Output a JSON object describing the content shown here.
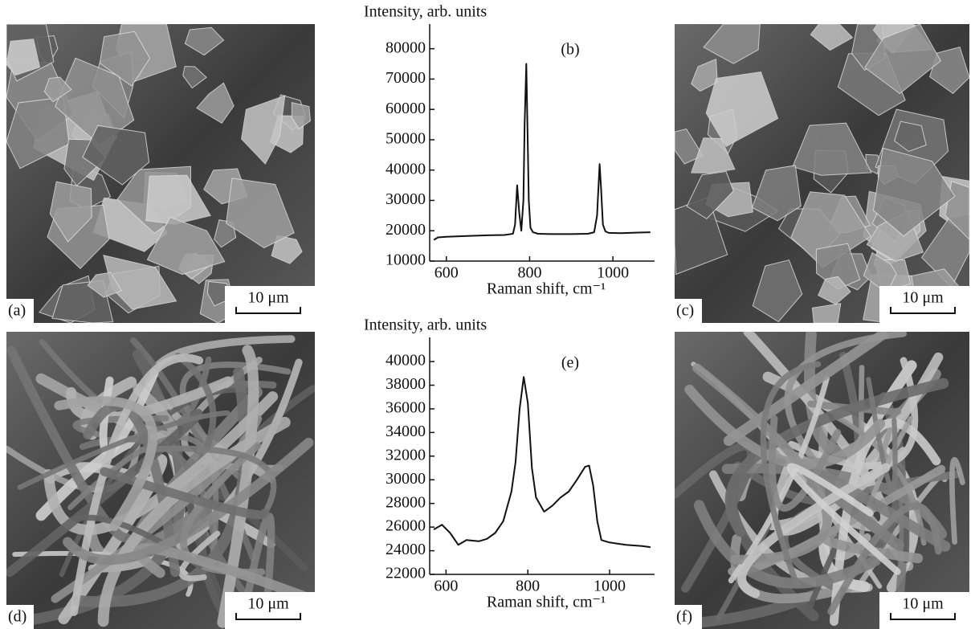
{
  "chart_data": [
    {
      "type": "line",
      "panel": "(b)",
      "ylabel": "Intensity, arb. units",
      "xlabel": "Raman shift, cm⁻¹",
      "color": "#111111",
      "x": [
        570,
        580,
        600,
        650,
        700,
        740,
        760,
        765,
        770,
        775,
        780,
        785,
        788,
        792,
        795,
        798,
        802,
        808,
        820,
        850,
        900,
        940,
        955,
        962,
        968,
        972,
        976,
        982,
        990,
        1020,
        1060,
        1090
      ],
      "values": [
        17000,
        17800,
        18000,
        18300,
        18500,
        18600,
        19000,
        22000,
        35000,
        26000,
        20000,
        30000,
        55000,
        75000,
        52000,
        30000,
        21000,
        19500,
        19000,
        18900,
        18900,
        19000,
        19500,
        25000,
        42000,
        33000,
        22000,
        19800,
        19300,
        19200,
        19400,
        19500
      ],
      "xlim": [
        560,
        1100
      ],
      "xticks": [
        600,
        800,
        1000
      ],
      "ylim": [
        10000,
        86000
      ],
      "yticks": [
        10000,
        20000,
        30000,
        40000,
        50000,
        60000,
        70000,
        80000
      ]
    },
    {
      "type": "line",
      "panel": "(e)",
      "ylabel": "Intensity, arb. units",
      "xlabel": "Raman shift, cm⁻¹",
      "color": "#111111",
      "x": [
        570,
        590,
        610,
        630,
        650,
        680,
        700,
        720,
        740,
        760,
        770,
        780,
        790,
        800,
        810,
        820,
        840,
        860,
        880,
        900,
        920,
        940,
        950,
        960,
        970,
        980,
        1000,
        1040,
        1080,
        1100
      ],
      "values": [
        25800,
        26200,
        25500,
        24500,
        24900,
        24800,
        25000,
        25500,
        26500,
        29000,
        31500,
        36000,
        38700,
        36500,
        31000,
        28500,
        27300,
        27800,
        28500,
        29000,
        30000,
        31100,
        31200,
        29500,
        26500,
        24900,
        24700,
        24500,
        24400,
        24300
      ],
      "xlim": [
        560,
        1110
      ],
      "xticks": [
        600,
        800,
        1000
      ],
      "ylim": [
        22000,
        41500
      ],
      "yticks": [
        22000,
        24000,
        26000,
        28000,
        30000,
        32000,
        34000,
        36000,
        38000,
        40000
      ]
    }
  ],
  "panels": [
    {
      "label": "(a)",
      "scale": "10 μm"
    },
    {
      "label": "(c)",
      "scale": "10 μm"
    },
    {
      "label": "(d)",
      "scale": "10 μm"
    },
    {
      "label": "(f)",
      "scale": "10 μm"
    }
  ]
}
